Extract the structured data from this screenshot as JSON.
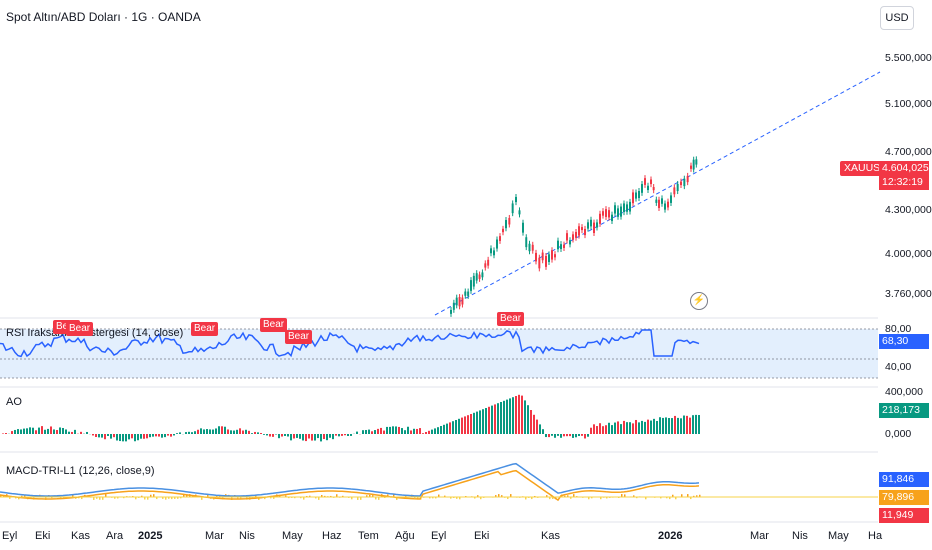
{
  "header": {
    "title": "Spot Altın/ABD Doları · 1G · OANDA",
    "currency": "USD"
  },
  "price_axis": {
    "labels": [
      "5.500,000",
      "5.100,000",
      "4.700,000",
      "4.300,000",
      "4.000,000",
      "3.760,000"
    ]
  },
  "symbol": {
    "name": "XAUUSD",
    "price": "4.604,025",
    "countdown": "12:32:19",
    "color": "#f23645"
  },
  "rsi_pane": {
    "title": "RSI Iraksama Göstergesi (14, close)",
    "value": "68,30",
    "levels": [
      "80,00",
      "40,00"
    ],
    "line_color": "#2962ff"
  },
  "ao_pane": {
    "title": "AO",
    "value": "218,173",
    "levels": [
      "400,000",
      "0,000"
    ],
    "up_color": "#089981",
    "down_color": "#f23645"
  },
  "macd_pane": {
    "title": "MACD-TRI-L1 (12,26, close,9)",
    "values": [
      "91,846",
      "79,896",
      "11,949"
    ],
    "colors": [
      "#2962ff",
      "#f7a21b",
      "#f23645"
    ]
  },
  "bear_tags": [
    "Bear",
    "Bear",
    "Bear",
    "Bear",
    "Bear",
    "Bear",
    "Bear"
  ],
  "time_axis": [
    "Eyl",
    "Eki",
    "Kas",
    "Ara",
    "2025",
    "Mar",
    "Nis",
    "May",
    "Haz",
    "Tem",
    "Ağu",
    "Eyl",
    "Eki",
    "Kas",
    "2026",
    "Mar",
    "Nis",
    "May",
    "Ha"
  ],
  "icons": {
    "bolt": "lightning-icon"
  }
}
